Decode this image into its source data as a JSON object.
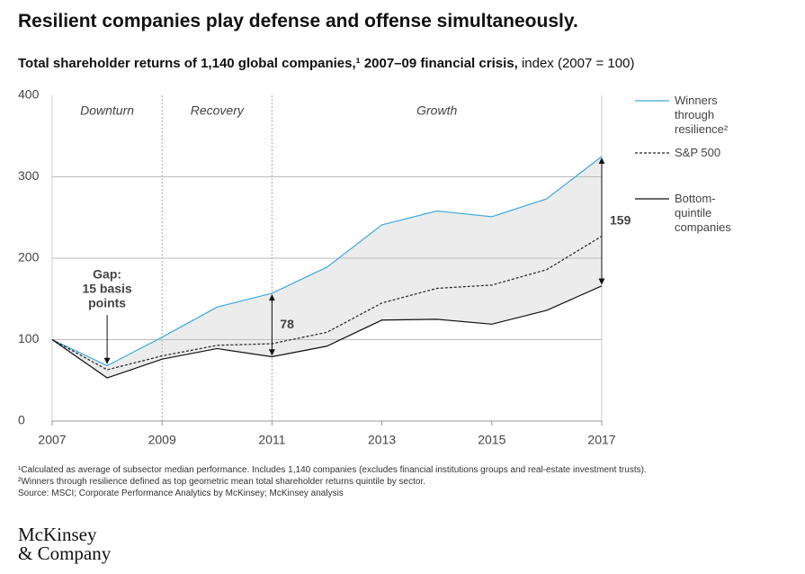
{
  "chart_data": {
    "type": "line",
    "title": "Resilient companies play defense and offense simultaneously.",
    "subtitle_bold": "Total shareholder returns of 1,140 global companies,¹ 2007–09 financial crisis,",
    "subtitle_normal": "index (2007 = 100)",
    "x": [
      2007,
      2008,
      2009,
      2010,
      2011,
      2012,
      2013,
      2014,
      2015,
      2016,
      2017
    ],
    "series": [
      {
        "name": "Winners through resilience²",
        "color": "#3fa9dc",
        "dash": false,
        "values": [
          100,
          68,
          103,
          140,
          157,
          189,
          241,
          258,
          251,
          273,
          325
        ]
      },
      {
        "name": "S&P 500",
        "color": "#222222",
        "dash": true,
        "values": [
          100,
          63,
          80,
          93,
          95,
          109,
          145,
          163,
          167,
          186,
          227
        ]
      },
      {
        "name": "Bottom-quintile companies",
        "color": "#111111",
        "dash": false,
        "values": [
          100,
          53,
          76,
          89,
          79,
          92,
          124,
          125,
          119,
          136,
          166
        ]
      }
    ],
    "xlim": [
      2007,
      2017
    ],
    "xticks": [
      2007,
      2009,
      2011,
      2013,
      2015,
      2017
    ],
    "ylim": [
      0,
      400
    ],
    "yticks": [
      0,
      100,
      200,
      300,
      400
    ],
    "phases": [
      {
        "label": "Downturn",
        "start": 2007,
        "end": 2009
      },
      {
        "label": "Recovery",
        "start": 2009,
        "end": 2011
      },
      {
        "label": "Growth",
        "start": 2011,
        "end": 2017
      }
    ],
    "gap_arrows": [
      {
        "x": 2011,
        "value": 78
      },
      {
        "x": 2017,
        "value": 159
      }
    ],
    "gap_note": {
      "x": 2008,
      "lines": [
        "Gap:",
        "15 basis",
        "points"
      ]
    },
    "footnotes": [
      "¹Calculated as average of subsector median performance. Includes 1,140 companies (excludes financial institutions groups and real-estate investment trusts).",
      "²Winners through resilience defined as top geometric mean total shareholder returns quintile by sector.",
      " Source: MSCI; Corporate Performance Analytics by McKinsey; McKinsey analysis"
    ],
    "logo": [
      "McKinsey",
      "& Company"
    ]
  }
}
